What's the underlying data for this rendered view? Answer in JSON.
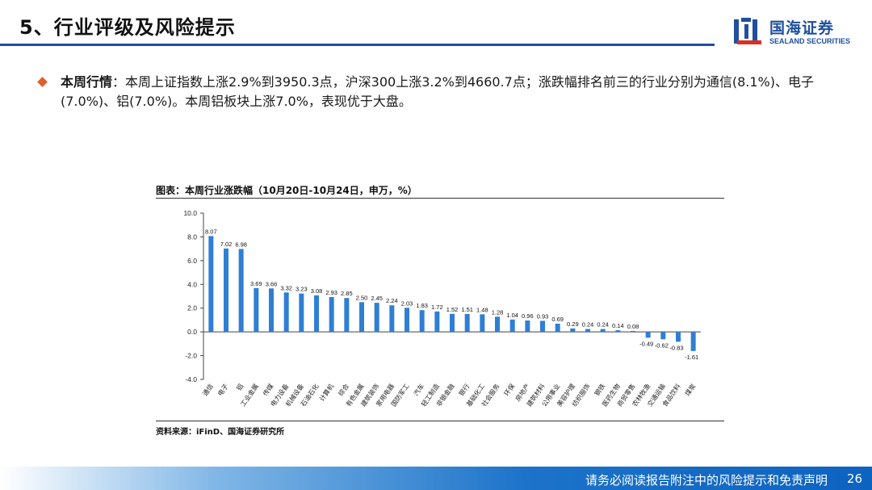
{
  "header": {
    "title": "5、行业评级及风险提示",
    "logo_cn": "国海证券",
    "logo_en": "SEALAND SECURITIES"
  },
  "bullet": {
    "label": "本周行情",
    "text": "：本周上证指数上涨2.9%到3950.3点，沪深300上涨3.2%到4660.7点；涨跌幅排名前三的行业分别为通信(8.1%)、电子(7.0%)、铝(7.0%)。本周铝板块上涨7.0%，表现优于大盘。"
  },
  "chart_title": "图表：本周行业涨跌幅（10月20日-10月24日，申万，%）",
  "source": "资料来源：iFinD、国海证券研究所",
  "footer": {
    "text": "请务必阅读报告附注中的风险提示和免责声明",
    "page": "26"
  },
  "colors": {
    "bar": "#2e7fd4",
    "brand": "#1f4f9f",
    "accent": "#e0602a"
  },
  "chart_data": {
    "type": "bar",
    "title": "图表：本周行业涨跌幅（10月20日-10月24日，申万，%）",
    "ylim": [
      -4,
      10
    ],
    "yticks": [
      "10.0",
      "8.0",
      "6.0",
      "4.0",
      "2.0",
      "0.0",
      "-2.0",
      "-4.0"
    ],
    "grid": false,
    "categories": [
      "通信",
      "电子",
      "铝",
      "工业金属",
      "传媒",
      "电力设备",
      "机械设备",
      "石油石化",
      "计算机",
      "综合",
      "有色金属",
      "建筑装饰",
      "家用电器",
      "国防军工",
      "汽车",
      "轻工制造",
      "非银金融",
      "银行",
      "基础化工",
      "社会服务",
      "环保",
      "房地产",
      "建筑材料",
      "公用事业",
      "美容护理",
      "纺织服饰",
      "钢铁",
      "医药生物",
      "商贸零售",
      "农林牧渔",
      "交通运输",
      "食品饮料",
      "煤炭"
    ],
    "values": [
      8.07,
      7.02,
      6.98,
      3.69,
      3.66,
      3.32,
      3.23,
      3.08,
      2.93,
      2.85,
      2.5,
      2.45,
      2.24,
      2.03,
      1.83,
      1.72,
      1.52,
      1.51,
      1.48,
      1.28,
      1.04,
      0.96,
      0.93,
      0.69,
      0.29,
      0.24,
      0.24,
      0.14,
      0.08,
      -0.49,
      -0.62,
      -0.83,
      -1.61
    ],
    "labels": [
      "8.07",
      "7.02",
      "6.98",
      "3.69",
      "3.66",
      "3.32",
      "3.23",
      "3.08",
      "2.93",
      "2.85",
      "2.50",
      "2.45",
      "2.24",
      "2.03",
      "1.83",
      "1.72",
      "1.52",
      "1.51",
      "1.48",
      "1.28",
      "1.04",
      "0.96",
      "0.93",
      "0.69",
      "0.29",
      "0.24",
      "0.24",
      "0.14",
      "0.08",
      "-0.49",
      "-0.62",
      "-0.83",
      "-1.61"
    ]
  }
}
